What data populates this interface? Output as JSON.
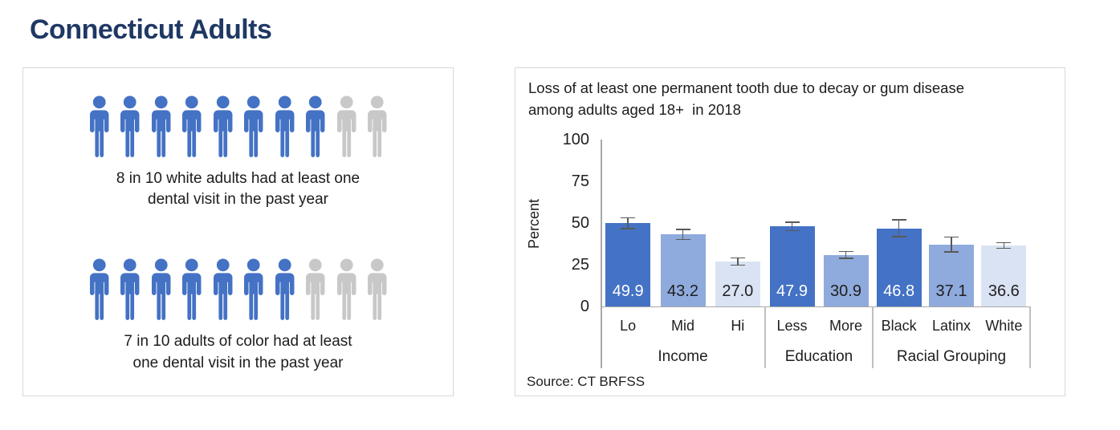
{
  "title": "Connecticut Adults",
  "colors": {
    "title_text": "#1F3864",
    "icon_blue": "#4472C4",
    "icon_gray": "#C8C8C8",
    "bar_dark": "#4472C4",
    "bar_medium": "#8FAADC",
    "bar_light": "#DAE3F3",
    "error_bar": "#595959",
    "axis_line": "#A8A8A8",
    "separator": "#BFBFBF",
    "panel_border": "#D8D8D8"
  },
  "pictograph_panel": {
    "rows": [
      {
        "total": 10,
        "filled": 8,
        "caption_lines": [
          "8 in 10 white adults had at least one",
          "dental visit in the past year"
        ]
      },
      {
        "total": 10,
        "filled": 7,
        "caption_lines": [
          "7 in 10 adults of color had at least",
          "one dental visit in the past year"
        ]
      }
    ]
  },
  "chart_data": {
    "type": "bar",
    "title": "Loss of at least one permanent tooth due to decay or gum disease among adults aged 18+  in 2018",
    "ylabel": "Percent",
    "ylim": [
      0,
      100
    ],
    "yticks": [
      0,
      25,
      50,
      75,
      100
    ],
    "grid": false,
    "legend": false,
    "groups": [
      {
        "label": "Income",
        "bars": [
          {
            "label": "Lo",
            "value": 49.9,
            "error": 2.9,
            "shade": "dark"
          },
          {
            "label": "Mid",
            "value": 43.2,
            "error": 2.6,
            "shade": "medium"
          },
          {
            "label": "Hi",
            "value": 27.0,
            "error": 1.8,
            "shade": "light"
          }
        ]
      },
      {
        "label": "Education",
        "bars": [
          {
            "label": "Less",
            "value": 47.9,
            "error": 2.2,
            "shade": "dark"
          },
          {
            "label": "More",
            "value": 30.9,
            "error": 1.6,
            "shade": "medium"
          }
        ]
      },
      {
        "label": "Racial Grouping",
        "bars": [
          {
            "label": "Black",
            "value": 46.8,
            "error": 4.7,
            "shade": "dark"
          },
          {
            "label": "Latinx",
            "value": 37.1,
            "error": 4.1,
            "shade": "medium"
          },
          {
            "label": "White",
            "value": 36.6,
            "error": 1.3,
            "shade": "light"
          }
        ]
      }
    ],
    "source": "Source: CT BRFSS"
  }
}
